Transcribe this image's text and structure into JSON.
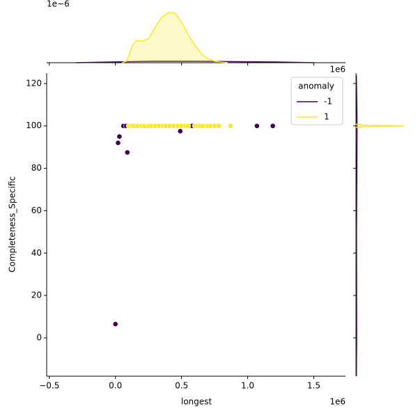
{
  "chart_data": [
    {
      "type": "scatter",
      "xlabel": "longest",
      "ylabel": "Completeness_Specific",
      "x_offset_label": "1e6",
      "xlim": [
        -0.52,
        1.74
      ],
      "ylim": [
        -18.1,
        124.9
      ],
      "xticks": [
        {
          "value": -0.5,
          "label": "−0.5"
        },
        {
          "value": 0,
          "label": "0.0"
        },
        0.5,
        {
          "value": 1,
          "label": "1.0"
        },
        1.5
      ],
      "yticks": [
        0,
        20,
        40,
        60,
        80,
        100,
        120
      ],
      "legend_title": "anomaly",
      "legend": "upper right",
      "series": [
        {
          "name": "-1",
          "color": "#440154",
          "x": [
            0.06,
            0.08,
            0.58,
            0.72,
            1.07,
            1.19,
            0.49,
            0.03,
            0.02,
            0.09,
            0.0
          ],
          "values": [
            100,
            100,
            100,
            100,
            100,
            100,
            97.5,
            95,
            92,
            87.5,
            6.5
          ]
        },
        {
          "name": "1",
          "color": "#fde725",
          "x": [
            0.1,
            0.12,
            0.13,
            0.15,
            0.17,
            0.2,
            0.22,
            0.25,
            0.27,
            0.3,
            0.33,
            0.36,
            0.38,
            0.41,
            0.44,
            0.47,
            0.5,
            0.53,
            0.55,
            0.6,
            0.62,
            0.64,
            0.66,
            0.69,
            0.7,
            0.72,
            0.75,
            0.78,
            0.87
          ],
          "values": [
            100,
            100,
            100,
            100,
            100,
            100,
            100,
            100,
            100,
            100,
            100,
            100,
            100,
            100,
            100,
            100,
            100,
            100,
            100,
            100,
            100,
            100,
            100,
            100,
            100,
            100,
            100,
            100,
            100
          ]
        }
      ]
    },
    {
      "type": "kde",
      "orient": "x",
      "offset_label": "1e−6",
      "xlim": [
        -0.52,
        1.74
      ],
      "ylim": [
        0,
        2.2
      ],
      "xticks": [
        -0.5,
        0,
        0.5,
        1,
        1.5
      ],
      "series": [
        {
          "color": "#440154",
          "x": [
            -0.3,
            0,
            0.3,
            0.6,
            0.9,
            1.2,
            1.5
          ],
          "values": [
            0,
            0.03,
            0.06,
            0.06,
            0.04,
            0.03,
            0
          ]
        },
        {
          "color": "#fde725",
          "x": [
            0.05,
            0.08,
            0.1,
            0.13,
            0.16,
            0.2,
            0.25,
            0.3,
            0.35,
            0.4,
            0.45,
            0.5,
            0.55,
            0.6,
            0.65,
            0.7,
            0.75,
            0.8,
            0.85
          ],
          "values": [
            0,
            0.05,
            0.25,
            0.7,
            0.88,
            0.85,
            0.95,
            1.4,
            1.8,
            1.98,
            1.95,
            1.6,
            1.1,
            0.7,
            0.35,
            0.15,
            0.06,
            0.02,
            0
          ]
        }
      ]
    },
    {
      "type": "kde",
      "orient": "y",
      "offset_label": "1e6",
      "xlim": [
        0,
        0.45
      ],
      "ylim": [
        -18.1,
        124.9
      ],
      "yticks": [
        0,
        20,
        40,
        60,
        80,
        100,
        120
      ],
      "series": [
        {
          "color": "#440154",
          "y": [
            -18,
            0,
            50,
            100,
            124
          ],
          "values": [
            0.003,
            0.005,
            0.004,
            0.008,
            0.003
          ]
        },
        {
          "color": "#fde725",
          "y": [
            99.2,
            99.6,
            100,
            100.4,
            100.8
          ],
          "values": [
            0,
            0.05,
            0.37,
            0.05,
            0
          ]
        }
      ]
    }
  ]
}
